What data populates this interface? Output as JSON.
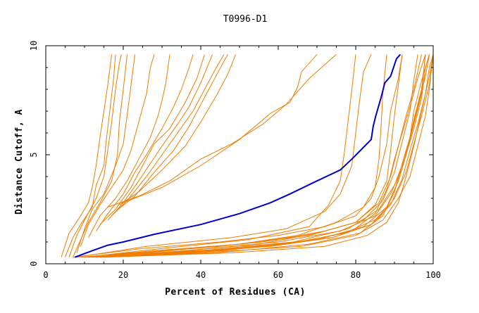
{
  "chart_data": {
    "type": "line",
    "title": "T0996-D1",
    "xlabel": "Percent of Residues (CA)",
    "ylabel": "Distance Cutoff, A",
    "xlim": [
      0,
      100
    ],
    "ylim": [
      0,
      10
    ],
    "x_ticks": [
      0,
      20,
      40,
      60,
      80,
      100
    ],
    "x_tick_labels": [
      "0",
      "20",
      "40",
      "60",
      "80",
      "100"
    ],
    "y_ticks": [
      0,
      5,
      10
    ],
    "y_tick_labels": [
      "0",
      "5",
      "10"
    ],
    "grid": false,
    "legend": "none",
    "colors": {
      "highlight": "#0000cc",
      "others": "#f07c00",
      "axes": "#000000"
    },
    "highlight_series": [
      [
        7.5,
        0.3
      ],
      [
        12,
        0.6
      ],
      [
        16,
        0.85
      ],
      [
        20,
        1.0
      ],
      [
        28,
        1.35
      ],
      [
        40,
        1.8
      ],
      [
        50,
        2.3
      ],
      [
        58,
        2.8
      ],
      [
        63,
        3.2
      ],
      [
        70,
        3.8
      ],
      [
        76,
        4.3
      ],
      [
        79,
        4.8
      ],
      [
        84,
        5.7
      ],
      [
        84.5,
        6.3
      ],
      [
        85.2,
        6.8
      ],
      [
        86.5,
        7.6
      ],
      [
        87.5,
        8.3
      ],
      [
        89,
        8.6
      ],
      [
        90.5,
        9.4
      ],
      [
        91.5,
        9.6
      ]
    ],
    "other_series": [
      [
        [
          4,
          0.3
        ],
        [
          6,
          1.4
        ],
        [
          9,
          2.2
        ],
        [
          11,
          2.8
        ],
        [
          12,
          3.5
        ],
        [
          13,
          4.5
        ],
        [
          14,
          5.8
        ],
        [
          15,
          7.0
        ],
        [
          16,
          8.2
        ],
        [
          17,
          9.6
        ]
      ],
      [
        [
          5,
          0.3
        ],
        [
          7,
          1.2
        ],
        [
          9,
          1.8
        ],
        [
          12,
          2.6
        ],
        [
          13,
          3.6
        ],
        [
          15,
          4.5
        ],
        [
          15.5,
          5.5
        ],
        [
          16.5,
          7.0
        ],
        [
          17.5,
          8.5
        ],
        [
          18,
          9.6
        ]
      ],
      [
        [
          6,
          0.3
        ],
        [
          8,
          1.3
        ],
        [
          10,
          2.0
        ],
        [
          13,
          3.0
        ],
        [
          15,
          4.0
        ],
        [
          16,
          5.2
        ],
        [
          17,
          6.5
        ],
        [
          18,
          8.0
        ],
        [
          19,
          9.2
        ],
        [
          19.5,
          9.6
        ]
      ],
      [
        [
          7,
          0.3
        ],
        [
          9,
          1.1
        ],
        [
          11,
          1.9
        ],
        [
          14,
          2.8
        ],
        [
          17,
          3.8
        ],
        [
          18.5,
          5.0
        ],
        [
          19,
          6.5
        ],
        [
          20,
          8.0
        ],
        [
          21,
          9.6
        ]
      ],
      [
        [
          8,
          0.5
        ],
        [
          10,
          1.6
        ],
        [
          12,
          2.5
        ],
        [
          15,
          3.2
        ],
        [
          18,
          4.5
        ],
        [
          20,
          5.5
        ],
        [
          21,
          6.8
        ],
        [
          22,
          8.2
        ],
        [
          23,
          9.6
        ]
      ],
      [
        [
          9,
          0.8
        ],
        [
          11,
          1.8
        ],
        [
          14,
          2.7
        ],
        [
          17,
          3.5
        ],
        [
          20,
          4.3
        ],
        [
          22,
          5.2
        ],
        [
          24,
          6.5
        ],
        [
          26,
          7.8
        ],
        [
          27,
          9.0
        ],
        [
          28,
          9.6
        ]
      ],
      [
        [
          11,
          1.2
        ],
        [
          14,
          2.2
        ],
        [
          18,
          3.0
        ],
        [
          21,
          3.8
        ],
        [
          24,
          4.8
        ],
        [
          27,
          5.8
        ],
        [
          29,
          6.8
        ],
        [
          30,
          7.5
        ],
        [
          31,
          8.3
        ],
        [
          32,
          9.6
        ]
      ],
      [
        [
          13,
          1.5
        ],
        [
          16,
          2.3
        ],
        [
          20,
          3.2
        ],
        [
          23,
          4.2
        ],
        [
          26,
          5.0
        ],
        [
          30,
          6.2
        ],
        [
          33,
          7.2
        ],
        [
          35,
          8.0
        ],
        [
          37,
          9.0
        ],
        [
          38,
          9.6
        ]
      ],
      [
        [
          14,
          1.8
        ],
        [
          18,
          2.5
        ],
        [
          22,
          3.5
        ],
        [
          25,
          4.5
        ],
        [
          28,
          5.5
        ],
        [
          32,
          6.2
        ],
        [
          36,
          7.4
        ],
        [
          39,
          8.5
        ],
        [
          41,
          9.6
        ]
      ],
      [
        [
          16,
          2.0
        ],
        [
          20,
          2.8
        ],
        [
          24,
          3.8
        ],
        [
          27,
          4.6
        ],
        [
          30,
          5.4
        ],
        [
          34,
          6.4
        ],
        [
          37,
          7.2
        ],
        [
          40,
          8.3
        ],
        [
          43,
          9.6
        ]
      ],
      [
        [
          17,
          2.2
        ],
        [
          21,
          2.9
        ],
        [
          26,
          4.0
        ],
        [
          30,
          5.0
        ],
        [
          34,
          6.0
        ],
        [
          38,
          7.0
        ],
        [
          41,
          8.0
        ],
        [
          44,
          9.0
        ],
        [
          46,
          9.6
        ]
      ],
      [
        [
          18,
          2.4
        ],
        [
          23,
          3.1
        ],
        [
          28,
          4.2
        ],
        [
          33,
          5.2
        ],
        [
          37,
          6.3
        ],
        [
          40,
          7.3
        ],
        [
          43,
          8.3
        ],
        [
          46,
          9.3
        ],
        [
          47,
          9.6
        ]
      ],
      [
        [
          19,
          2.7
        ],
        [
          24,
          3.3
        ],
        [
          30,
          4.3
        ],
        [
          36,
          5.4
        ],
        [
          40,
          6.5
        ],
        [
          44,
          7.7
        ],
        [
          47,
          8.7
        ],
        [
          49,
          9.6
        ]
      ],
      [
        [
          16,
          2.6
        ],
        [
          24,
          3.1
        ],
        [
          32,
          3.8
        ],
        [
          40,
          4.8
        ],
        [
          48,
          5.5
        ],
        [
          56,
          6.4
        ],
        [
          62,
          7.3
        ],
        [
          68,
          8.5
        ],
        [
          75,
          9.6
        ]
      ],
      [
        [
          20,
          2.8
        ],
        [
          30,
          3.5
        ],
        [
          40,
          4.5
        ],
        [
          50,
          5.7
        ],
        [
          58,
          6.9
        ],
        [
          63,
          7.4
        ],
        [
          65,
          8.1
        ],
        [
          66,
          8.8
        ],
        [
          70,
          9.6
        ]
      ],
      [
        [
          7,
          0.3
        ],
        [
          25,
          0.7
        ],
        [
          45,
          1.0
        ],
        [
          60,
          1.3
        ],
        [
          72,
          1.7
        ],
        [
          80,
          2.2
        ],
        [
          84,
          3.0
        ],
        [
          86,
          4.0
        ],
        [
          88,
          5.5
        ],
        [
          89,
          7.0
        ],
        [
          91,
          8.5
        ],
        [
          92,
          9.6
        ]
      ],
      [
        [
          8,
          0.3
        ],
        [
          26,
          0.8
        ],
        [
          48,
          1.2
        ],
        [
          62,
          1.6
        ],
        [
          72,
          2.4
        ],
        [
          76,
          3.2
        ],
        [
          79,
          4.5
        ],
        [
          80,
          6.0
        ],
        [
          81,
          7.5
        ],
        [
          82,
          8.8
        ],
        [
          84,
          9.6
        ]
      ],
      [
        [
          9,
          0.3
        ],
        [
          28,
          0.6
        ],
        [
          50,
          0.9
        ],
        [
          65,
          1.3
        ],
        [
          75,
          1.9
        ],
        [
          82,
          2.6
        ],
        [
          85,
          3.5
        ],
        [
          86,
          4.8
        ],
        [
          86.5,
          6.2
        ],
        [
          87,
          7.8
        ],
        [
          88,
          9.6
        ]
      ],
      [
        [
          10,
          0.3
        ],
        [
          30,
          0.7
        ],
        [
          52,
          1.1
        ],
        [
          68,
          1.7
        ],
        [
          73,
          2.7
        ],
        [
          76,
          3.8
        ],
        [
          77,
          5.0
        ],
        [
          78,
          6.5
        ],
        [
          79,
          8.0
        ],
        [
          80,
          9.6
        ]
      ],
      [
        [
          10,
          0.3
        ],
        [
          30,
          0.5
        ],
        [
          55,
          0.9
        ],
        [
          70,
          1.4
        ],
        [
          80,
          1.9
        ],
        [
          85,
          2.7
        ],
        [
          88,
          3.8
        ],
        [
          89,
          5.2
        ],
        [
          90,
          6.8
        ],
        [
          91,
          8.2
        ],
        [
          92,
          9.6
        ]
      ],
      [
        [
          11,
          0.3
        ],
        [
          32,
          0.6
        ],
        [
          56,
          1.0
        ],
        [
          72,
          1.5
        ],
        [
          82,
          2.0
        ],
        [
          87,
          2.9
        ],
        [
          90,
          4.2
        ],
        [
          92,
          5.6
        ],
        [
          94,
          7.0
        ],
        [
          95,
          8.4
        ],
        [
          96,
          9.6
        ]
      ],
      [
        [
          11,
          0.3
        ],
        [
          34,
          0.5
        ],
        [
          58,
          0.8
        ],
        [
          74,
          1.2
        ],
        [
          84,
          1.8
        ],
        [
          88,
          2.6
        ],
        [
          91,
          3.8
        ],
        [
          93,
          5.0
        ],
        [
          95,
          6.4
        ],
        [
          97,
          7.8
        ],
        [
          98,
          9.6
        ]
      ],
      [
        [
          12,
          0.3
        ],
        [
          36,
          0.6
        ],
        [
          60,
          1.0
        ],
        [
          76,
          1.5
        ],
        [
          85,
          2.2
        ],
        [
          89,
          3.2
        ],
        [
          92,
          4.4
        ],
        [
          94,
          5.8
        ],
        [
          96,
          7.2
        ],
        [
          98,
          8.6
        ],
        [
          99,
          9.6
        ]
      ],
      [
        [
          12,
          0.3
        ],
        [
          38,
          0.5
        ],
        [
          62,
          0.9
        ],
        [
          77,
          1.4
        ],
        [
          86,
          2.1
        ],
        [
          90,
          3.0
        ],
        [
          93,
          4.2
        ],
        [
          95,
          5.5
        ],
        [
          97,
          6.8
        ],
        [
          99,
          8.2
        ],
        [
          100,
          9.6
        ]
      ],
      [
        [
          13,
          0.3
        ],
        [
          40,
          0.6
        ],
        [
          64,
          1.0
        ],
        [
          78,
          1.6
        ],
        [
          86,
          2.5
        ],
        [
          90,
          3.6
        ],
        [
          93,
          5.0
        ],
        [
          95,
          6.2
        ],
        [
          97,
          7.6
        ],
        [
          98,
          9.0
        ],
        [
          99,
          9.6
        ]
      ],
      [
        [
          13,
          0.3
        ],
        [
          40,
          0.5
        ],
        [
          66,
          0.8
        ],
        [
          80,
          1.3
        ],
        [
          87,
          2.0
        ],
        [
          91,
          3.0
        ],
        [
          94,
          4.0
        ],
        [
          96,
          5.4
        ],
        [
          98,
          6.8
        ],
        [
          99,
          8.0
        ],
        [
          100,
          9.6
        ]
      ],
      [
        [
          14,
          0.3
        ],
        [
          42,
          0.6
        ],
        [
          66,
          1.0
        ],
        [
          79,
          1.5
        ],
        [
          85,
          2.3
        ],
        [
          88,
          3.4
        ],
        [
          90,
          4.8
        ],
        [
          92,
          6.0
        ],
        [
          94,
          7.2
        ],
        [
          96,
          8.5
        ],
        [
          98,
          9.6
        ]
      ],
      [
        [
          14,
          0.3
        ],
        [
          44,
          0.5
        ],
        [
          68,
          0.9
        ],
        [
          81,
          1.4
        ],
        [
          87,
          2.2
        ],
        [
          90,
          3.3
        ],
        [
          92,
          4.6
        ],
        [
          94,
          5.8
        ],
        [
          95,
          7.0
        ],
        [
          97,
          8.4
        ],
        [
          99,
          9.6
        ]
      ],
      [
        [
          15,
          0.3
        ],
        [
          46,
          0.6
        ],
        [
          70,
          1.1
        ],
        [
          82,
          1.7
        ],
        [
          88,
          2.6
        ],
        [
          91,
          3.8
        ],
        [
          93,
          5.0
        ],
        [
          95,
          6.6
        ],
        [
          97,
          8.0
        ],
        [
          98,
          9.6
        ]
      ],
      [
        [
          15,
          0.3
        ],
        [
          48,
          0.5
        ],
        [
          72,
          0.8
        ],
        [
          83,
          1.3
        ],
        [
          88,
          1.9
        ],
        [
          91,
          2.8
        ],
        [
          93,
          4.0
        ],
        [
          95,
          5.4
        ],
        [
          97,
          7.0
        ],
        [
          99,
          8.6
        ],
        [
          100,
          9.6
        ]
      ],
      [
        [
          16,
          0.4
        ],
        [
          45,
          0.8
        ],
        [
          68,
          1.3
        ],
        [
          80,
          1.9
        ],
        [
          86,
          2.8
        ],
        [
          89,
          4.0
        ],
        [
          91,
          5.4
        ],
        [
          93,
          6.8
        ],
        [
          95,
          8.0
        ],
        [
          97,
          9.6
        ]
      ],
      [
        [
          16,
          0.4
        ],
        [
          50,
          0.7
        ],
        [
          74,
          1.2
        ],
        [
          84,
          1.8
        ],
        [
          89,
          2.7
        ],
        [
          92,
          3.9
        ],
        [
          94,
          5.2
        ],
        [
          96,
          6.4
        ],
        [
          98,
          7.8
        ],
        [
          99,
          9.0
        ],
        [
          100,
          9.6
        ]
      ]
    ]
  }
}
